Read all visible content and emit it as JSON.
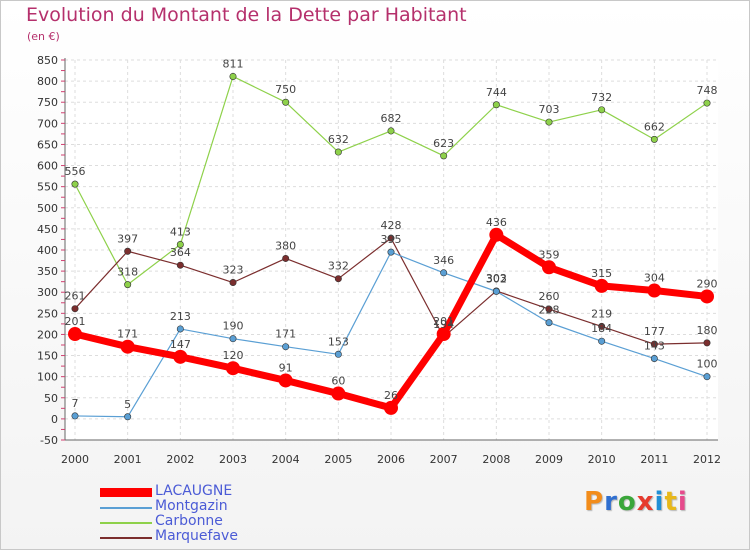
{
  "header": {
    "title": "Evolution du Montant de la Dette par Habitant",
    "subtitle": "(en €)"
  },
  "logo": {
    "text": "Proxiti"
  },
  "chart_data": {
    "type": "line",
    "title": "Evolution du Montant de la Dette par Habitant",
    "ylabel": "(en €)",
    "x": [
      2000,
      2001,
      2002,
      2003,
      2004,
      2005,
      2006,
      2007,
      2008,
      2009,
      2010,
      2011,
      2012
    ],
    "ylim": [
      -50,
      850
    ],
    "yticks": [
      -50,
      0,
      50,
      100,
      150,
      200,
      250,
      300,
      350,
      400,
      450,
      500,
      550,
      600,
      650,
      700,
      750,
      800,
      850
    ],
    "grid": true,
    "legend_position": "bottom-left",
    "series": [
      {
        "name": "LACAUGNE",
        "color": "#ff0000",
        "values": [
          201,
          171,
          147,
          120,
          91,
          60,
          26,
          201,
          436,
          359,
          315,
          304,
          290
        ]
      },
      {
        "name": "Montgazin",
        "color": "#5a9fd4",
        "values": [
          7,
          5,
          213,
          190,
          171,
          153,
          395,
          346,
          302,
          228,
          184,
          143,
          100
        ]
      },
      {
        "name": "Carbonne",
        "color": "#8ed14a",
        "values": [
          556,
          318,
          413,
          811,
          750,
          632,
          682,
          623,
          744,
          703,
          732,
          662,
          748
        ]
      },
      {
        "name": "Marquefave",
        "color": "#7b2e2e",
        "values": [
          261,
          397,
          364,
          323,
          380,
          332,
          428,
          194,
          303,
          260,
          219,
          177,
          180
        ]
      }
    ]
  }
}
